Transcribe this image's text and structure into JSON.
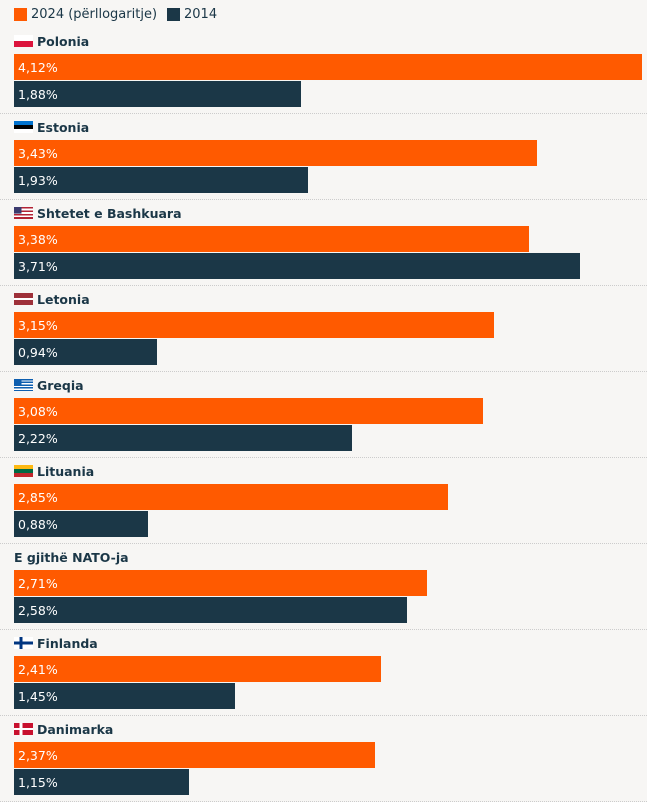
{
  "chart_data": {
    "type": "bar",
    "orientation": "horizontal",
    "legend": [
      {
        "name": "2024 (përllogaritje)",
        "color": "#ff5a00"
      },
      {
        "name": "2014",
        "color": "#1b3747"
      }
    ],
    "xlim": [
      0,
      4.12
    ],
    "categories": [
      {
        "name": "Polonia",
        "flag": "poland",
        "v2024": 4.12,
        "v2014": 1.88,
        "l2024": "4,12%",
        "l2014": "1,88%"
      },
      {
        "name": "Estonia",
        "flag": "estonia",
        "v2024": 3.43,
        "v2014": 1.93,
        "l2024": "3,43%",
        "l2014": "1,93%"
      },
      {
        "name": "Shtetet e Bashkuara",
        "flag": "usa",
        "v2024": 3.38,
        "v2014": 3.71,
        "l2024": "3,38%",
        "l2014": "3,71%"
      },
      {
        "name": "Letonia",
        "flag": "latvia",
        "v2024": 3.15,
        "v2014": 0.94,
        "l2024": "3,15%",
        "l2014": "0,94%"
      },
      {
        "name": "Greqia",
        "flag": "greece",
        "v2024": 3.08,
        "v2014": 2.22,
        "l2024": "3,08%",
        "l2014": "2,22%"
      },
      {
        "name": "Lituania",
        "flag": "lithuania",
        "v2024": 2.85,
        "v2014": 0.88,
        "l2024": "2,85%",
        "l2014": "0,88%"
      },
      {
        "name": "E gjithë NATO-ja",
        "flag": "",
        "v2024": 2.71,
        "v2014": 2.58,
        "l2024": "2,71%",
        "l2014": "2,58%"
      },
      {
        "name": "Finlanda",
        "flag": "finland",
        "v2024": 2.41,
        "v2014": 1.45,
        "l2024": "2,41%",
        "l2014": "1,45%"
      },
      {
        "name": "Danimarka",
        "flag": "denmark",
        "v2024": 2.37,
        "v2014": 1.15,
        "l2024": "2,37%",
        "l2014": "1,15%"
      }
    ]
  }
}
